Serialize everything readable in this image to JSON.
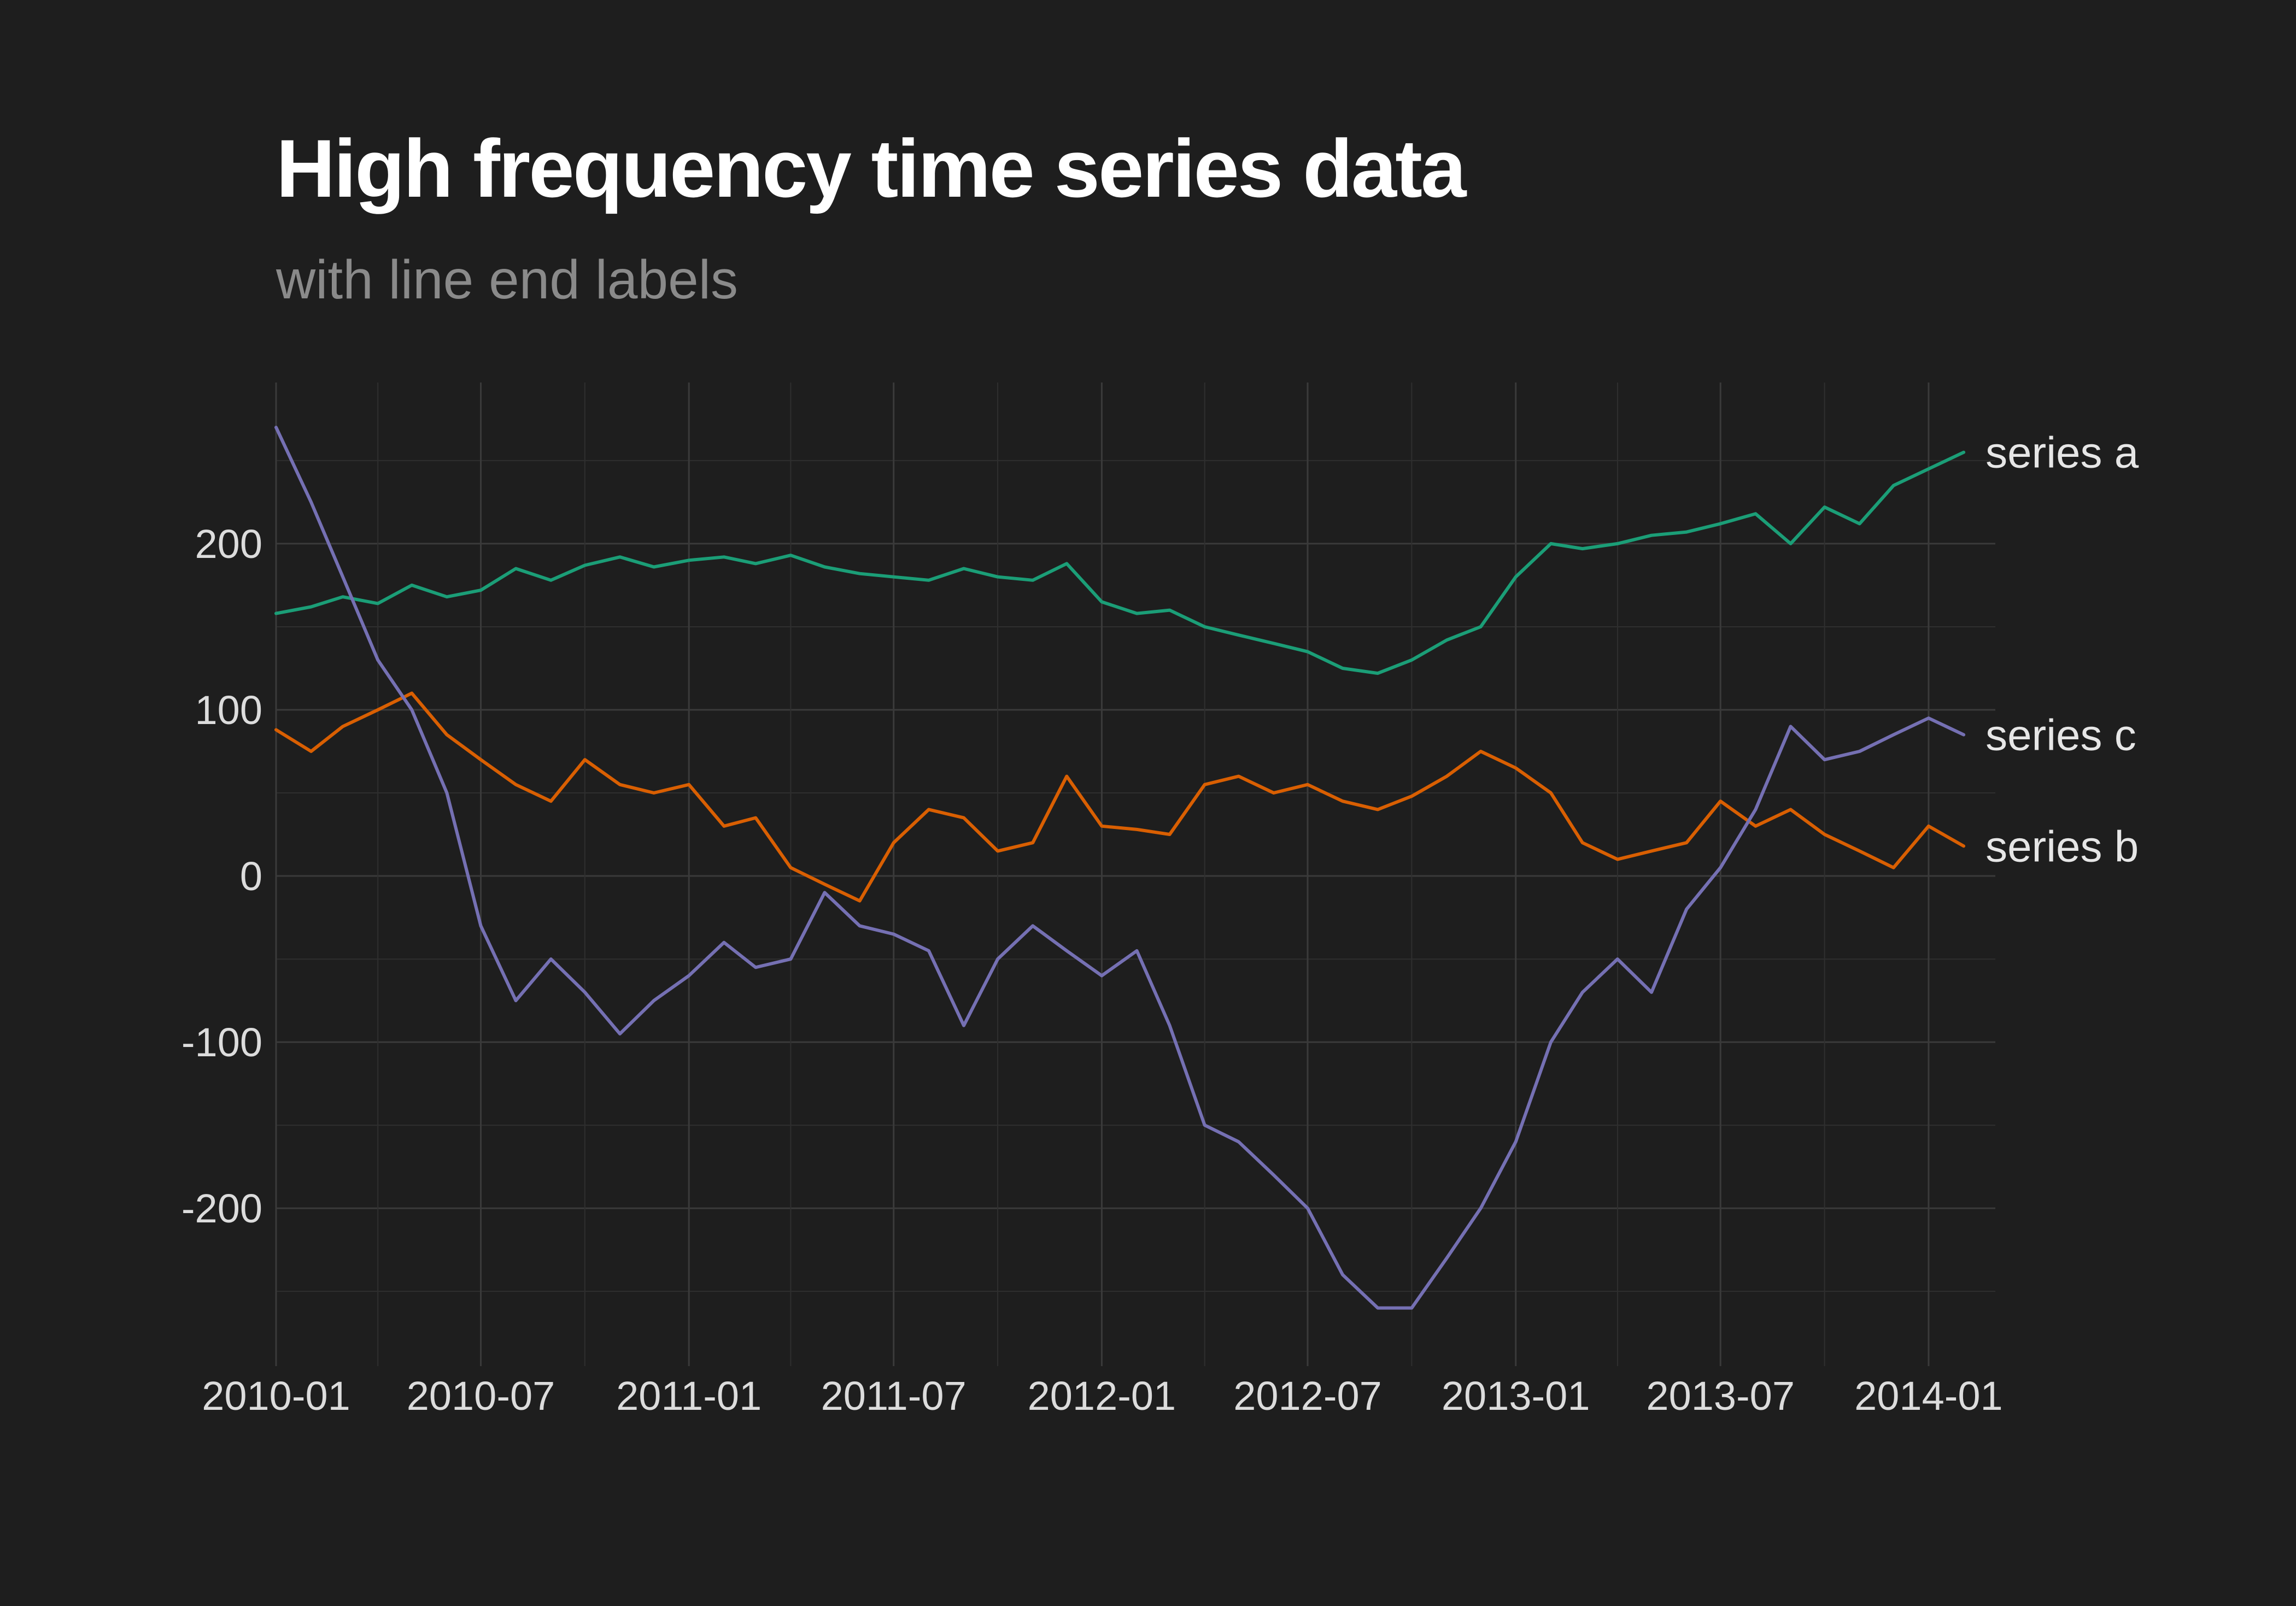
{
  "chart_data": {
    "type": "line",
    "title": "High frequency time series data",
    "subtitle": "with line end labels",
    "xlabel": "",
    "ylabel": "",
    "x_ticks": [
      "2010-01",
      "2010-07",
      "2011-01",
      "2011-07",
      "2012-01",
      "2012-07",
      "2013-01",
      "2013-07",
      "2014-01"
    ],
    "y_ticks": [
      -200,
      -100,
      0,
      100,
      200
    ],
    "y_tick_labels": [
      "-200",
      "-100",
      "0",
      "100",
      "200"
    ],
    "xlim": [
      "2010-01-01",
      "2014-03-01"
    ],
    "ylim": [
      -295,
      297
    ],
    "grid": true,
    "legend": "line end labels",
    "x": [
      "2010-01-01",
      "2010-02-01",
      "2010-03-01",
      "2010-04-01",
      "2010-05-01",
      "2010-06-01",
      "2010-07-01",
      "2010-08-01",
      "2010-09-01",
      "2010-10-01",
      "2010-11-01",
      "2010-12-01",
      "2011-01-01",
      "2011-02-01",
      "2011-03-01",
      "2011-04-01",
      "2011-05-01",
      "2011-06-01",
      "2011-07-01",
      "2011-08-01",
      "2011-09-01",
      "2011-10-01",
      "2011-11-01",
      "2011-12-01",
      "2012-01-01",
      "2012-02-01",
      "2012-03-01",
      "2012-04-01",
      "2012-05-01",
      "2012-06-01",
      "2012-07-01",
      "2012-08-01",
      "2012-09-01",
      "2012-10-01",
      "2012-11-01",
      "2012-12-01",
      "2013-01-01",
      "2013-02-01",
      "2013-03-01",
      "2013-04-01",
      "2013-05-01",
      "2013-06-01",
      "2013-07-01",
      "2013-08-01",
      "2013-09-01",
      "2013-10-01",
      "2013-11-01",
      "2013-12-01",
      "2014-01-01",
      "2014-02-01"
    ],
    "series": [
      {
        "name": "series a",
        "color": "#1b9e77",
        "values": [
          158,
          162,
          168,
          164,
          175,
          168,
          172,
          185,
          178,
          187,
          192,
          186,
          190,
          192,
          188,
          193,
          186,
          182,
          180,
          178,
          185,
          180,
          178,
          188,
          165,
          158,
          160,
          150,
          145,
          140,
          135,
          125,
          122,
          130,
          142,
          150,
          180,
          200,
          197,
          200,
          205,
          207,
          212,
          218,
          200,
          222,
          212,
          235,
          245,
          255
        ]
      },
      {
        "name": "series b",
        "color": "#d95f02",
        "values": [
          88,
          75,
          90,
          100,
          110,
          85,
          70,
          55,
          45,
          70,
          55,
          50,
          55,
          30,
          35,
          5,
          -5,
          -15,
          20,
          40,
          35,
          15,
          20,
          60,
          30,
          28,
          25,
          55,
          60,
          50,
          55,
          45,
          40,
          48,
          60,
          75,
          65,
          50,
          20,
          10,
          15,
          20,
          45,
          30,
          40,
          25,
          15,
          5,
          30,
          18
        ]
      },
      {
        "name": "series c",
        "color": "#7570b3",
        "values": [
          270,
          225,
          180,
          130,
          100,
          50,
          -30,
          -75,
          -50,
          -70,
          -95,
          -75,
          -60,
          -40,
          -55,
          -50,
          -10,
          -30,
          -35,
          -45,
          -90,
          -50,
          -30,
          -45,
          -60,
          -45,
          -90,
          -150,
          -160,
          -180,
          -200,
          -240,
          -260,
          -260,
          -230,
          -200,
          -160,
          -100,
          -70,
          -50,
          -70,
          -20,
          5,
          40,
          90,
          70,
          75,
          85,
          95,
          85
        ]
      }
    ]
  }
}
